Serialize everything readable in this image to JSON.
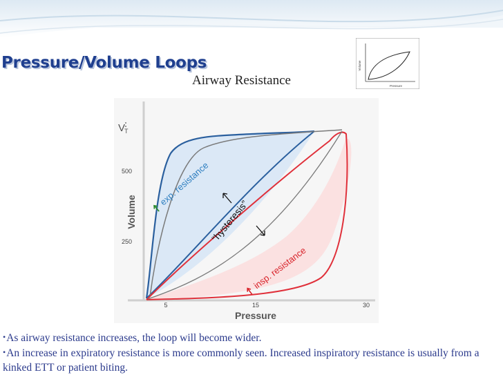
{
  "slide": {
    "title": "Pressure/Volume Loops",
    "subtitle": "Airway Resistance"
  },
  "thumbnail": {
    "y_label": "Volume",
    "x_label": "Pressure"
  },
  "figure": {
    "y_symbol": "V",
    "y_subscript": "T",
    "ylabel": "Volume",
    "xlabel": "Pressure",
    "y_ticks": [
      "500",
      "250"
    ],
    "x_ticks": [
      "5",
      "15",
      "30"
    ],
    "exp_label": "exp. resistance",
    "insp_label": "insp. resistance",
    "hysteresis_label": "“hysteresis”",
    "colors": {
      "exp_line": "#2a5f9e",
      "exp_fill": "#dbe8f6",
      "insp_line": "#e0303a",
      "insp_fill": "#fbe1e1",
      "normal_line": "#7a7a7a",
      "exp_text": "#2f7fc0",
      "insp_text": "#d8232a",
      "arrow_green": "#2a8a2a"
    }
  },
  "bullets": [
    {
      "marker": "•",
      "text": "As airway resistance increases, the loop will become wider."
    },
    {
      "marker": "•",
      "text": "An increase in expiratory resistance is more commonly seen.  Increased inspiratory resistance is usually from a kinked ETT or patient biting."
    }
  ]
}
